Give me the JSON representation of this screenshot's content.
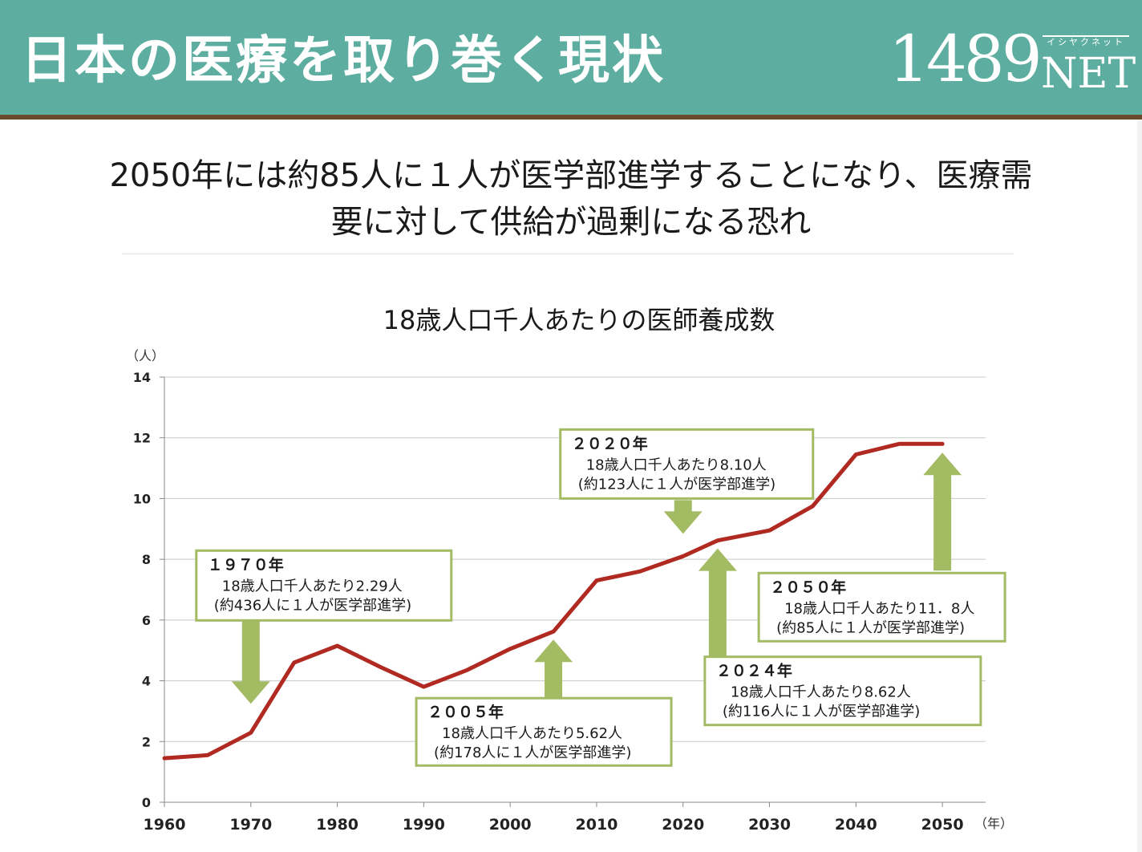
{
  "header": {
    "title": "日本の医療を取り巻く現状",
    "logo_number": "1489",
    "logo_kana": "イシヤクネット",
    "logo_text": "NET"
  },
  "subtitle": {
    "line1": "2050年には約85人に１人が医学部進学することになり、医療需",
    "line2": "要に対して供給が過剰になる恐れ"
  },
  "colors": {
    "header_bg": "#5daea1",
    "header_line": "#6b4a2c",
    "line": "#b02a22",
    "arrow": "#a3bb63",
    "callout_border": "#a3bb63",
    "grid": "#c8c8c8"
  },
  "chart_data": {
    "type": "line",
    "title": "18歳人口千人あたりの医師養成数",
    "ylabel": "（人）",
    "xlabel": "（年）",
    "ylim": [
      0,
      14
    ],
    "xlim": [
      1960,
      2055
    ],
    "yticks": [
      0,
      2,
      4,
      6,
      8,
      10,
      12,
      14
    ],
    "xticks": [
      1960,
      1970,
      1980,
      1990,
      2000,
      2010,
      2020,
      2030,
      2040,
      2050
    ],
    "grid": true,
    "series": [
      {
        "x": [
          1960,
          1965,
          1970,
          1975,
          1980,
          1985,
          1990,
          1995,
          2000,
          2005,
          2010,
          2015,
          2020,
          2024,
          2030,
          2035,
          2040,
          2045,
          2050
        ],
        "values": [
          1.45,
          1.55,
          2.29,
          4.6,
          5.15,
          4.45,
          3.8,
          4.35,
          5.05,
          5.62,
          7.3,
          7.6,
          8.1,
          8.62,
          8.95,
          9.75,
          11.45,
          11.8,
          11.8
        ]
      }
    ],
    "annotations": [
      {
        "year": "１９７０年",
        "line1": "18歳人口千人あたり2.29人",
        "line2": "(約436人に１人が医学部進学)",
        "target_x": 1970,
        "target_y": 2.29
      },
      {
        "year": "２００５年",
        "line1": "18歳人口千人あたり5.62人",
        "line2": "(約178人に１人が医学部進学)",
        "target_x": 2005,
        "target_y": 5.62
      },
      {
        "year": "２０２０年",
        "line1": "18歳人口千人あたり8.10人",
        "line2": "(約123人に１人が医学部進学)",
        "target_x": 2020,
        "target_y": 8.1
      },
      {
        "year": "２０２４年",
        "line1": "18歳人口千人あたり8.62人",
        "line2": "(約116人に１人が医学部進学)",
        "target_x": 2024,
        "target_y": 8.62
      },
      {
        "year": "２０５０年",
        "line1": "18歳人口千人あたり11．8人",
        "line2": "(約85人に１人が医学部進学)",
        "target_x": 2050,
        "target_y": 11.8
      }
    ]
  }
}
